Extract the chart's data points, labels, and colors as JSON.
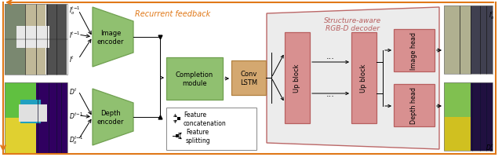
{
  "figsize": [
    6.4,
    2.01
  ],
  "dpi": 100,
  "bg_color": "#ffffff",
  "orange": "#E07818",
  "green_fill": "#90C070",
  "green_edge": "#70A050",
  "pink_fill": "#D89090",
  "pink_edge": "#B86060",
  "tan_fill": "#D4A870",
  "tan_edge": "#B08040",
  "decoder_fill": "#EBEBEB",
  "decoder_edge": "#B86060",
  "legend_edge": "#888888",
  "title_recurrent": "Recurrent feedback",
  "title_decoder": "Structure-aware\nRGB-D decoder",
  "lbl_img_enc": "Image\nencoder",
  "lbl_dep_enc": "Depth\nencoder",
  "lbl_completion": "Completion\nmodule",
  "lbl_conv_lstm": "Conv\nLSTM",
  "lbl_up_block": "Up block",
  "lbl_img_head": "Image head",
  "lbl_dep_head": "Depth head",
  "lbl_feat_concat": "Feature\nconcatenation",
  "lbl_feat_split": "Feature\nsplitting"
}
